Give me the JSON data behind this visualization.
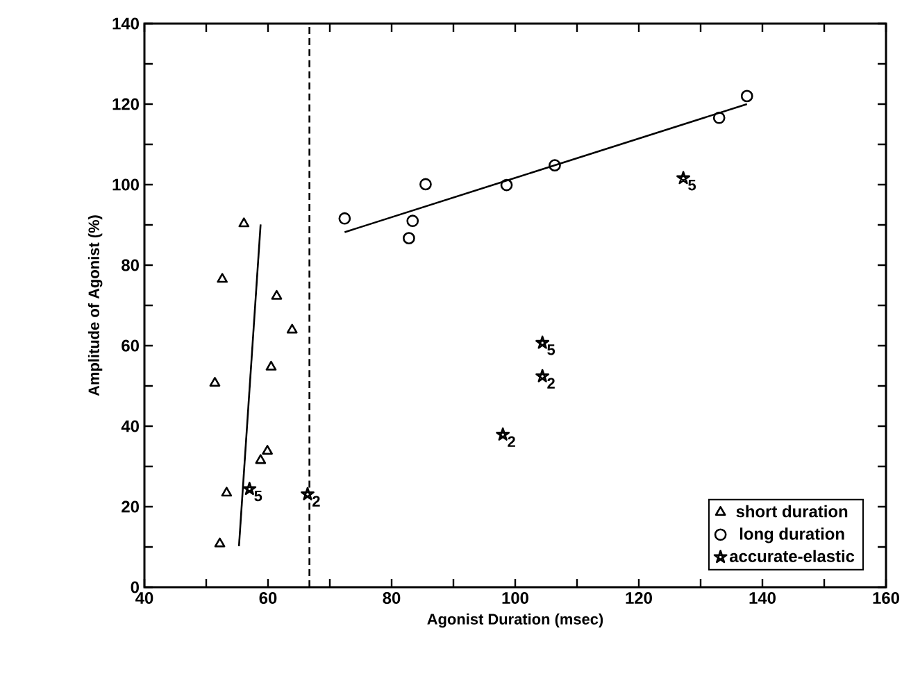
{
  "chart_data": {
    "type": "scatter",
    "xlabel": "Agonist Duration (msec)",
    "ylabel": "Amplitude of Agonist (%)",
    "xlim": [
      40,
      160
    ],
    "xticks": [
      40,
      {
        "value": 50,
        "label": null
      },
      60,
      {
        "value": 70,
        "label": null
      },
      80,
      {
        "value": 90,
        "label": null
      },
      100,
      {
        "value": 110,
        "label": null
      },
      120,
      {
        "value": 130,
        "label": null
      },
      140,
      {
        "value": 150,
        "label": null
      },
      160
    ],
    "ylim": [
      0,
      140
    ],
    "yticks": [
      0,
      {
        "value": 10,
        "label": null
      },
      20,
      {
        "value": 30,
        "label": null
      },
      40,
      {
        "value": 50,
        "label": null
      },
      60,
      {
        "value": 70,
        "label": null
      },
      80,
      {
        "value": 90,
        "label": null
      },
      100,
      {
        "value": 110,
        "label": null
      },
      120,
      {
        "value": 130,
        "label": null
      },
      140
    ],
    "legend": "bottom right",
    "grid": false,
    "series": [
      {
        "name": "short duration",
        "marker": "triangle",
        "color": "#000000",
        "x": [
          56.1,
          52.6,
          61.4,
          63.9,
          60.5,
          51.4,
          59.9,
          58.8,
          53.3,
          52.2
        ],
        "values": [
          90.3,
          76.5,
          72.3,
          63.9,
          54.7,
          50.7,
          33.8,
          31.5,
          23.4,
          10.8
        ]
      },
      {
        "name": "long duration",
        "marker": "circle",
        "color": "#000000",
        "x": [
          72.4,
          82.8,
          83.4,
          85.5,
          98.6,
          106.4,
          133,
          137.5
        ],
        "values": [
          91.6,
          86.7,
          91,
          100.1,
          99.9,
          104.8,
          116.6,
          122
        ]
      },
      {
        "name": "accurate-elastic",
        "marker": "star",
        "color": "#000000",
        "x": [
          57,
          66.4,
          98,
          104.4,
          104.4,
          127.2
        ],
        "values": [
          24.4,
          23.1,
          37.9,
          52.4,
          60.7,
          101.6
        ]
      },
      {
        "type": "line",
        "marker": "none",
        "line_style": "solid",
        "color": "#000000",
        "x": [
          55.3,
          58.8
        ],
        "values": [
          10.2,
          90.1
        ]
      },
      {
        "type": "line",
        "marker": "none",
        "line_style": "solid",
        "color": "#000000",
        "x": [
          72.4,
          137.5
        ],
        "values": [
          88.2,
          120
        ]
      }
    ],
    "ref_lines": [
      {
        "axis": "x",
        "value": 66.7,
        "line_style": "dashed",
        "color": "#000000"
      }
    ],
    "annotations": [
      {
        "text": "5",
        "x": 57,
        "y": 24.4
      },
      {
        "text": "2",
        "x": 66.4,
        "y": 23.1
      },
      {
        "text": "2",
        "x": 98,
        "y": 37.9
      },
      {
        "text": "2",
        "x": 104.4,
        "y": 52.4
      },
      {
        "text": "5",
        "x": 104.4,
        "y": 60.7
      },
      {
        "text": "5",
        "x": 127.2,
        "y": 101.6
      }
    ]
  }
}
